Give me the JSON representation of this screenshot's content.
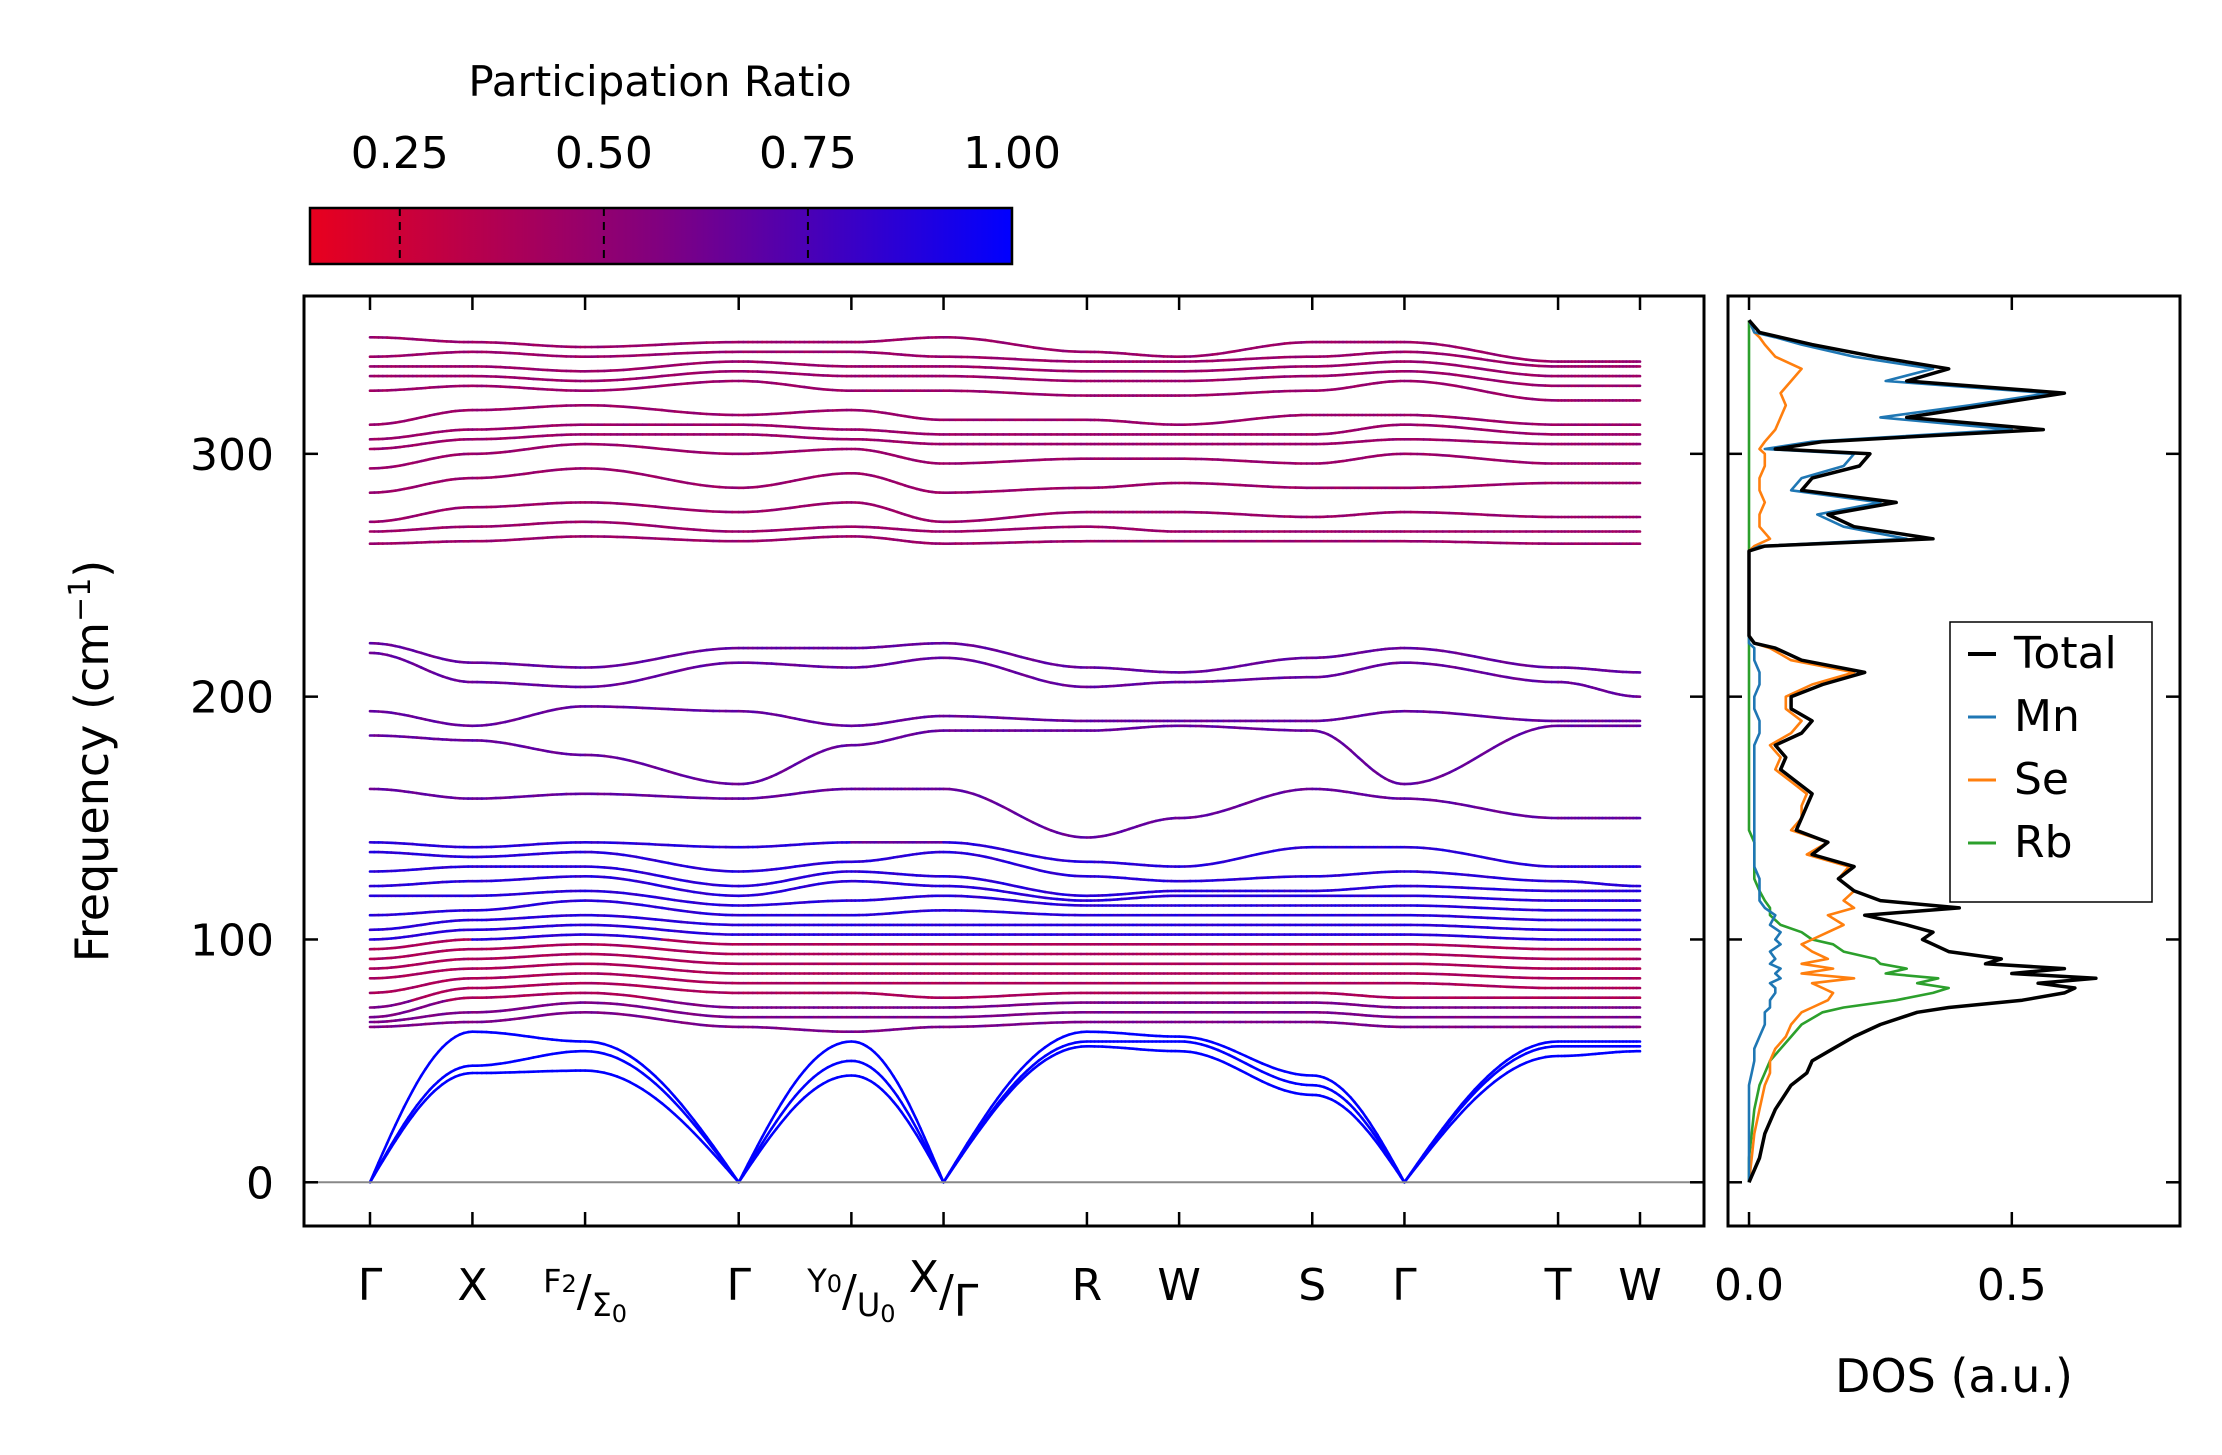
{
  "chart_data": [
    {
      "type": "line",
      "title": "",
      "ylabel": "Frequency (cm",
      "ylabel_sup": "−1",
      "ylabel_tail": ")",
      "ylim": [
        -18,
        365
      ],
      "yticks": [
        0,
        100,
        200,
        300
      ],
      "high_symmetry_points": [
        {
          "label": "Γ",
          "x": 0.0
        },
        {
          "label": "X",
          "x": 0.5
        },
        {
          "label": "F",
          "sub": "2",
          "label2": "Σ",
          "sub2": "0",
          "x": 1.05
        },
        {
          "label": "Γ",
          "x": 1.8
        },
        {
          "label": "Y",
          "sub": "0",
          "label2": "U",
          "sub2": "0",
          "x": 2.35
        },
        {
          "label": "X",
          "label2": "Γ",
          "x": 2.8
        },
        {
          "label": "R",
          "x": 3.5
        },
        {
          "label": "W",
          "x": 3.95
        },
        {
          "label": "S",
          "x": 4.6
        },
        {
          "label": "Γ",
          "x": 5.05
        },
        {
          "label": "T",
          "x": 5.8
        },
        {
          "label": "W",
          "x": 6.2
        }
      ],
      "path_breaks": [
        2.8
      ],
      "bands_at_points": [
        [
          0,
          0,
          0,
          64,
          66,
          68,
          72,
          78,
          84,
          88,
          92,
          96,
          100,
          104,
          110,
          118,
          122,
          128,
          136,
          140,
          162,
          184,
          194,
          218,
          222,
          263,
          268,
          272,
          284,
          294,
          302,
          306,
          312,
          326,
          332,
          336,
          340,
          348
        ],
        [
          45,
          48,
          62,
          66,
          70,
          76,
          80,
          84,
          88,
          92,
          96,
          100,
          104,
          108,
          112,
          118,
          124,
          130,
          134,
          138,
          158,
          182,
          188,
          206,
          214,
          264,
          270,
          278,
          290,
          300,
          306,
          310,
          318,
          328,
          332,
          336,
          342,
          346
        ],
        [
          46,
          54,
          58,
          70,
          74,
          78,
          82,
          86,
          90,
          94,
          98,
          102,
          106,
          110,
          116,
          120,
          126,
          130,
          136,
          140,
          160,
          176,
          196,
          204,
          212,
          266,
          272,
          280,
          294,
          304,
          308,
          312,
          320,
          326,
          330,
          334,
          340,
          344
        ],
        [
          0,
          0,
          0,
          64,
          68,
          72,
          78,
          82,
          86,
          90,
          94,
          98,
          102,
          106,
          110,
          114,
          118,
          122,
          128,
          138,
          158,
          164,
          194,
          214,
          220,
          264,
          268,
          276,
          286,
          300,
          308,
          312,
          316,
          330,
          334,
          338,
          342,
          346
        ],
        [
          44,
          50,
          58,
          62,
          68,
          72,
          78,
          82,
          86,
          90,
          94,
          98,
          102,
          106,
          110,
          116,
          124,
          128,
          132,
          140,
          162,
          180,
          188,
          212,
          220,
          266,
          270,
          280,
          292,
          302,
          306,
          310,
          318,
          326,
          332,
          336,
          342,
          346
        ],
        [
          0,
          0,
          0,
          64,
          68,
          72,
          76,
          82,
          86,
          90,
          94,
          98,
          102,
          106,
          112,
          118,
          122,
          126,
          136,
          140,
          162,
          186,
          192,
          216,
          222,
          263,
          268,
          272,
          284,
          296,
          304,
          308,
          314,
          326,
          332,
          336,
          340,
          348
        ],
        [
          56,
          58,
          62,
          66,
          70,
          74,
          78,
          82,
          86,
          90,
          94,
          98,
          102,
          106,
          110,
          114,
          116,
          118,
          126,
          132,
          142,
          186,
          190,
          204,
          212,
          264,
          270,
          276,
          286,
          298,
          304,
          308,
          314,
          324,
          330,
          334,
          338,
          342
        ],
        [
          54,
          58,
          60,
          66,
          70,
          74,
          78,
          82,
          86,
          90,
          94,
          98,
          102,
          106,
          110,
          114,
          118,
          120,
          124,
          130,
          150,
          188,
          190,
          206,
          210,
          264,
          268,
          276,
          288,
          298,
          304,
          308,
          312,
          324,
          330,
          334,
          338,
          340
        ],
        [
          36,
          40,
          44,
          66,
          70,
          74,
          78,
          82,
          86,
          90,
          94,
          98,
          102,
          106,
          110,
          114,
          118,
          120,
          126,
          138,
          162,
          186,
          190,
          208,
          216,
          264,
          268,
          274,
          286,
          296,
          304,
          308,
          316,
          326,
          332,
          336,
          340,
          346
        ],
        [
          0,
          0,
          0,
          64,
          68,
          72,
          76,
          82,
          86,
          90,
          94,
          98,
          102,
          106,
          110,
          114,
          118,
          122,
          128,
          138,
          158,
          164,
          194,
          214,
          220,
          264,
          268,
          276,
          286,
          300,
          306,
          312,
          316,
          330,
          334,
          338,
          342,
          346
        ],
        [
          52,
          56,
          58,
          64,
          68,
          72,
          76,
          80,
          84,
          88,
          92,
          96,
          100,
          104,
          108,
          112,
          116,
          120,
          124,
          130,
          150,
          188,
          190,
          206,
          212,
          263,
          268,
          274,
          288,
          296,
          304,
          308,
          312,
          322,
          328,
          332,
          336,
          338
        ],
        [
          54,
          56,
          58,
          64,
          68,
          72,
          76,
          80,
          84,
          88,
          92,
          96,
          100,
          104,
          108,
          112,
          116,
          120,
          122,
          130,
          150,
          188,
          190,
          200,
          210,
          263,
          268,
          274,
          288,
          296,
          304,
          308,
          312,
          322,
          328,
          332,
          336,
          338
        ]
      ],
      "colorbar": {
        "label": "Participation Ratio",
        "ticks": [
          "0.25",
          "0.50",
          "0.75",
          "1.00"
        ],
        "range": [
          0.14,
          1.0
        ],
        "color_low": "#e8001e",
        "color_mid": "#800080",
        "color_high": "#0000ff"
      },
      "zero_line": true
    },
    {
      "type": "line",
      "xlabel": "DOS (a.u.)",
      "xlim": [
        -0.04,
        0.82
      ],
      "xticks": [
        "0.0",
        "0.5"
      ],
      "xtick_values": [
        0.0,
        0.5
      ],
      "ylim": [
        -18,
        365
      ],
      "legend_position": "right-middle",
      "freq_grid": [
        0,
        10,
        20,
        30,
        40,
        45,
        50,
        55,
        60,
        65,
        70,
        72,
        75,
        78,
        80,
        82,
        84,
        86,
        88,
        90,
        92,
        95,
        98,
        100,
        103,
        106,
        110,
        113,
        116,
        120,
        125,
        130,
        135,
        140,
        145,
        150,
        155,
        160,
        165,
        170,
        175,
        180,
        185,
        190,
        195,
        200,
        205,
        210,
        215,
        220,
        222,
        225,
        240,
        260,
        262,
        265,
        270,
        275,
        280,
        285,
        290,
        295,
        300,
        302,
        305,
        310,
        315,
        320,
        325,
        330,
        335,
        340,
        345,
        348,
        350,
        355
      ],
      "series": [
        {
          "name": "Total",
          "color": "#000000",
          "values": [
            0,
            0.02,
            0.03,
            0.05,
            0.08,
            0.11,
            0.12,
            0.16,
            0.2,
            0.25,
            0.32,
            0.38,
            0.52,
            0.6,
            0.62,
            0.55,
            0.66,
            0.5,
            0.6,
            0.45,
            0.48,
            0.38,
            0.35,
            0.33,
            0.35,
            0.3,
            0.22,
            0.4,
            0.25,
            0.2,
            0.17,
            0.2,
            0.12,
            0.15,
            0.09,
            0.1,
            0.11,
            0.12,
            0.09,
            0.06,
            0.07,
            0.05,
            0.1,
            0.12,
            0.08,
            0.08,
            0.14,
            0.22,
            0.1,
            0.05,
            0.01,
            0,
            0,
            0,
            0.03,
            0.35,
            0.2,
            0.15,
            0.28,
            0.1,
            0.12,
            0.21,
            0.23,
            0.05,
            0.14,
            0.56,
            0.3,
            0.45,
            0.6,
            0.3,
            0.38,
            0.24,
            0.12,
            0.06,
            0.02,
            0
          ]
        },
        {
          "name": "Mn",
          "color": "#1f77b4",
          "values": [
            0,
            0,
            0,
            0,
            0,
            0.005,
            0.01,
            0.01,
            0.02,
            0.03,
            0.03,
            0.04,
            0.04,
            0.05,
            0.05,
            0.04,
            0.06,
            0.05,
            0.06,
            0.04,
            0.05,
            0.04,
            0.06,
            0.05,
            0.06,
            0.04,
            0.05,
            0.03,
            0.02,
            0.02,
            0.02,
            0.01,
            0.01,
            0.01,
            0.01,
            0.01,
            0.01,
            0.01,
            0.01,
            0.01,
            0.01,
            0.01,
            0.02,
            0.02,
            0.01,
            0.01,
            0.02,
            0.02,
            0.01,
            0.01,
            0,
            0,
            0,
            0,
            0.02,
            0.3,
            0.18,
            0.13,
            0.25,
            0.08,
            0.1,
            0.18,
            0.2,
            0.03,
            0.12,
            0.5,
            0.25,
            0.42,
            0.57,
            0.26,
            0.35,
            0.2,
            0.1,
            0.05,
            0.01,
            0
          ]
        },
        {
          "name": "Se",
          "color": "#ff7f0e",
          "values": [
            0,
            0.005,
            0.01,
            0.02,
            0.03,
            0.04,
            0.04,
            0.05,
            0.07,
            0.08,
            0.1,
            0.12,
            0.15,
            0.16,
            0.14,
            0.12,
            0.2,
            0.1,
            0.16,
            0.1,
            0.15,
            0.12,
            0.1,
            0.12,
            0.15,
            0.18,
            0.15,
            0.2,
            0.18,
            0.2,
            0.17,
            0.19,
            0.11,
            0.15,
            0.08,
            0.1,
            0.1,
            0.11,
            0.08,
            0.05,
            0.06,
            0.04,
            0.08,
            0.1,
            0.07,
            0.07,
            0.12,
            0.2,
            0.08,
            0.04,
            0.01,
            0,
            0,
            0,
            0.01,
            0.04,
            0.02,
            0.02,
            0.03,
            0.02,
            0.02,
            0.03,
            0.03,
            0.02,
            0.03,
            0.05,
            0.06,
            0.07,
            0.06,
            0.08,
            0.1,
            0.05,
            0.03,
            0.02,
            0.01,
            0
          ]
        },
        {
          "name": "Rb",
          "color": "#2ca02c",
          "values": [
            0,
            0,
            0.005,
            0.01,
            0.02,
            0.03,
            0.04,
            0.06,
            0.08,
            0.1,
            0.14,
            0.18,
            0.28,
            0.35,
            0.38,
            0.32,
            0.36,
            0.26,
            0.3,
            0.25,
            0.24,
            0.18,
            0.16,
            0.12,
            0.1,
            0.06,
            0.04,
            0.04,
            0.03,
            0.02,
            0.01,
            0.01,
            0.01,
            0.01,
            0,
            0,
            0,
            0,
            0,
            0,
            0,
            0,
            0,
            0,
            0,
            0,
            0,
            0,
            0,
            0,
            0,
            0,
            0,
            0,
            0,
            0,
            0,
            0,
            0,
            0,
            0,
            0,
            0,
            0,
            0,
            0,
            0,
            0,
            0,
            0,
            0,
            0,
            0,
            0,
            0,
            0
          ]
        }
      ]
    }
  ]
}
